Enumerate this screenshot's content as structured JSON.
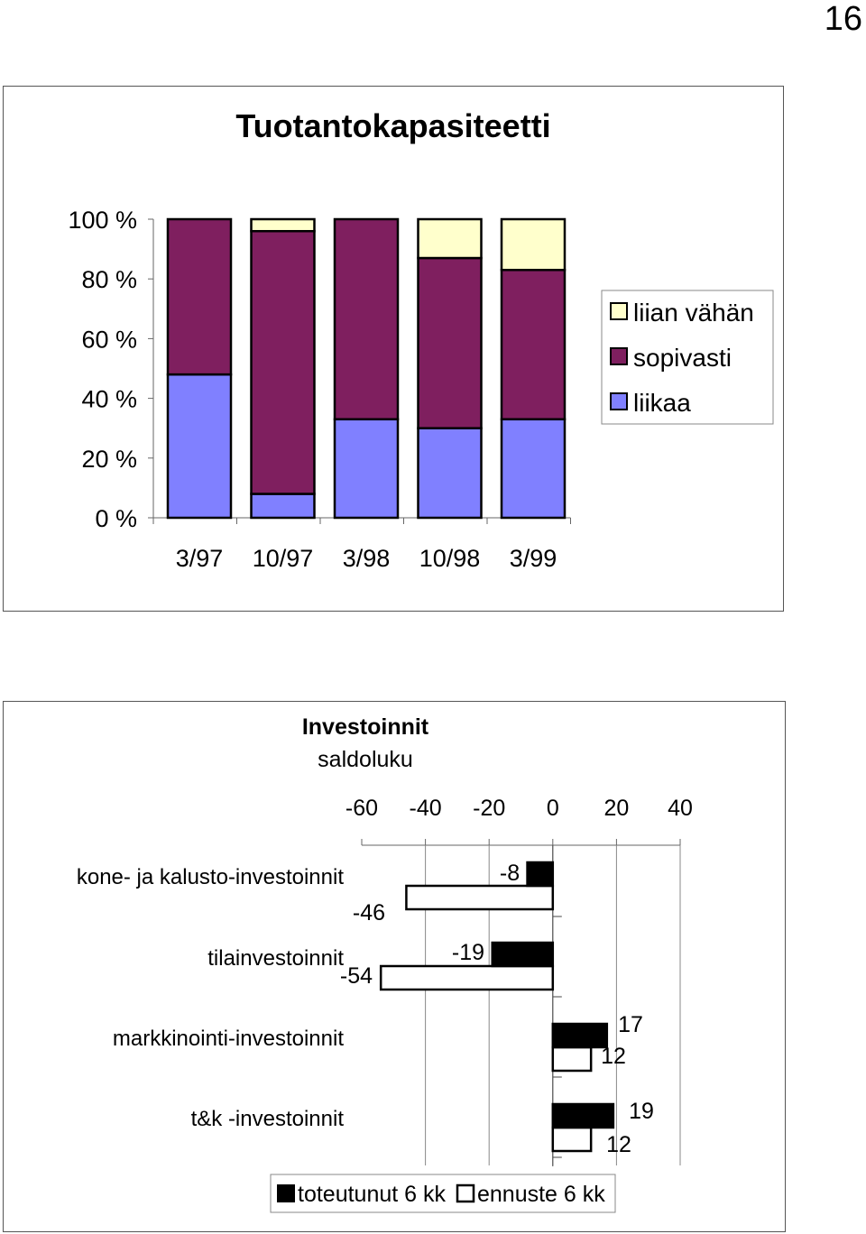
{
  "page_number": "16",
  "chart_data": [
    {
      "type": "bar",
      "stacked": true,
      "title": "Tuotantokapasiteetti",
      "categories": [
        "3/97",
        "10/97",
        "3/98",
        "10/98",
        "3/99"
      ],
      "series": [
        {
          "name": "liikaa",
          "color": "#8080ff",
          "values": [
            48,
            8,
            33,
            30,
            33
          ]
        },
        {
          "name": "sopivasti",
          "color": "#7f1f5f",
          "values": [
            52,
            88,
            67,
            57,
            50
          ]
        },
        {
          "name": "liian vähän",
          "color": "#ffffcc",
          "values": [
            0,
            4,
            0,
            13,
            17
          ]
        }
      ],
      "legend_order": [
        "liian vähän",
        "sopivasti",
        "liikaa"
      ],
      "yticks": [
        "0 %",
        "20 %",
        "40 %",
        "60 %",
        "80 %",
        "100 %"
      ],
      "ylim": [
        0,
        100
      ],
      "legend": "right"
    },
    {
      "type": "bar",
      "orientation": "horizontal",
      "title": "Investoinnit",
      "subtitle": "saldoluku",
      "categories": [
        "kone- ja kalusto-investoinnit",
        "tilainvestoinnit",
        "markkinointi-investoinnit",
        "t&k -investoinnit"
      ],
      "series": [
        {
          "name": "toteutunut 6 kk",
          "color": "#000000",
          "values": [
            -8,
            -19,
            17,
            19
          ]
        },
        {
          "name": "ennuste 6 kk",
          "color": "#ffffff",
          "values": [
            -46,
            -54,
            12,
            12
          ]
        }
      ],
      "xticks": [
        "-60",
        "-40",
        "-20",
        "0",
        "20",
        "40"
      ],
      "xlim": [
        -60,
        40
      ],
      "legend": "bottom"
    }
  ]
}
